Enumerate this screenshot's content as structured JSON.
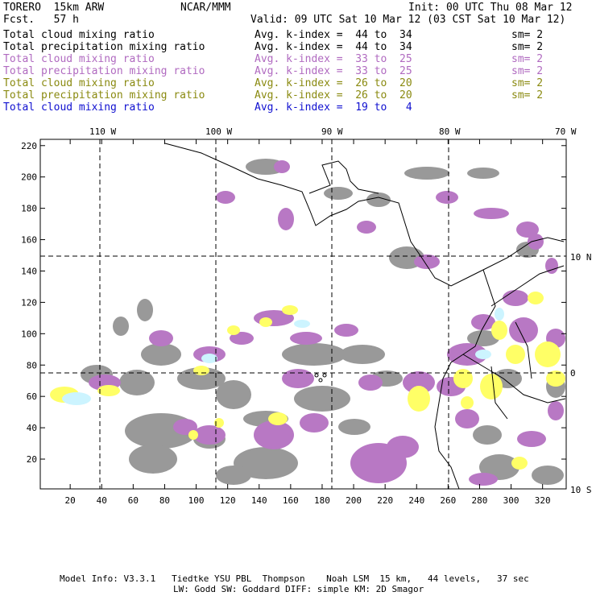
{
  "header": {
    "model": "TORERO  15km ARW",
    "org": "NCAR/MMM",
    "init": "Init: 00 UTC Thu 08 Mar 12",
    "fcst": "Fcst.   57 h",
    "valid": "Valid: 09 UTC Sat 10 Mar 12 (03 CST Sat 10 Mar 12)"
  },
  "legend": [
    {
      "field": "Total cloud mixing ratio",
      "index": "Avg. k-index =  44 to  34",
      "sm": "sm= 2",
      "color": "#000000"
    },
    {
      "field": "Total precipitation mixing ratio",
      "index": "Avg. k-index =  44 to  34",
      "sm": "sm= 2",
      "color": "#000000"
    },
    {
      "field": "Total cloud mixing ratio",
      "index": "Avg. k-index =  33 to  25",
      "sm": "sm= 2",
      "color": "#b06ac0"
    },
    {
      "field": "Total precipitation mixing ratio",
      "index": "Avg. k-index =  33 to  25",
      "sm": "sm= 2",
      "color": "#b06ac0"
    },
    {
      "field": "Total cloud mixing ratio",
      "index": "Avg. k-index =  26 to  20",
      "sm": "sm= 2",
      "color": "#8a8a10"
    },
    {
      "field": "Total precipitation mixing ratio",
      "index": "Avg. k-index =  26 to  20",
      "sm": "sm= 2",
      "color": "#8a8a10"
    },
    {
      "field": "Total cloud mixing ratio",
      "index": "Avg. k-index =  19 to   4",
      "sm": "",
      "color": "#1010d0"
    }
  ],
  "map": {
    "lon_labels": [
      "110 W",
      "100 W",
      "90 W",
      "80 W",
      "70 W"
    ],
    "lat_labels": [
      "10 N",
      "0",
      "10 S"
    ],
    "x_ticks": [
      "20",
      "40",
      "60",
      "80",
      "100",
      "120",
      "140",
      "160",
      "180",
      "200",
      "220",
      "240",
      "260",
      "280",
      "300",
      "320"
    ],
    "y_ticks": [
      "20",
      "40",
      "60",
      "80",
      "100",
      "120",
      "140",
      "160",
      "180",
      "200",
      "220"
    ],
    "x_range": [
      1,
      335
    ],
    "y_range": [
      1,
      224
    ]
  },
  "footer": {
    "line1": "Model Info: V3.3.1   Tiedtke YSU PBL  Thompson    Noah LSM  15 km,   44 levels,   37 sec",
    "line2": "LW: Godd SW: Goddard DIFF: simple KM: 2D Smagor"
  },
  "colors": {
    "gray_cloud": "#999999",
    "magenta_cloud": "#b878c4",
    "yellow_cloud": "#ffff66",
    "cyan_cloud": "#ccf4ff"
  }
}
